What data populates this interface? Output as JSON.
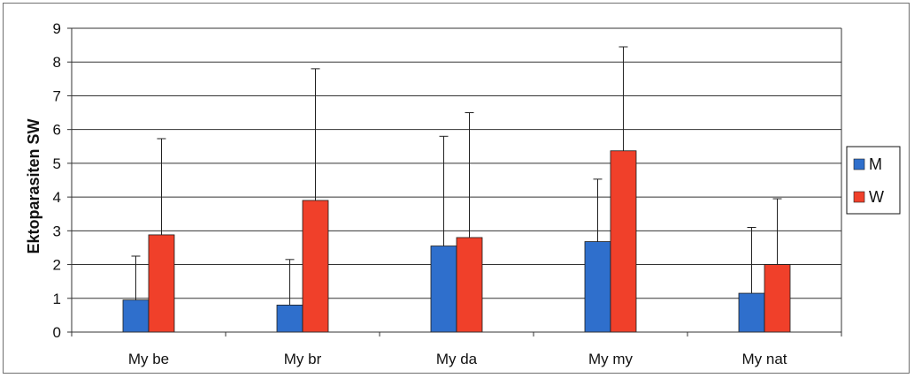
{
  "chart_data": {
    "type": "bar",
    "title": "",
    "xlabel": "",
    "ylabel": "Ektoparasiten SW",
    "ylim": [
      0,
      9
    ],
    "yticks": [
      0,
      1,
      2,
      3,
      4,
      5,
      6,
      7,
      8,
      9
    ],
    "grid": true,
    "legend_position": "right",
    "categories": [
      "My be",
      "My br",
      "My da",
      "My my",
      "My nat"
    ],
    "series": [
      {
        "name": "M",
        "color": "#2f6fcc",
        "values": [
          0.95,
          0.8,
          2.55,
          2.68,
          1.15
        ],
        "error": [
          1.3,
          1.35,
          3.25,
          1.85,
          1.95
        ]
      },
      {
        "name": "W",
        "color": "#f0402a",
        "values": [
          2.88,
          3.9,
          2.8,
          5.37,
          2.0
        ],
        "error": [
          2.85,
          3.9,
          3.7,
          3.08,
          1.95
        ]
      }
    ]
  }
}
